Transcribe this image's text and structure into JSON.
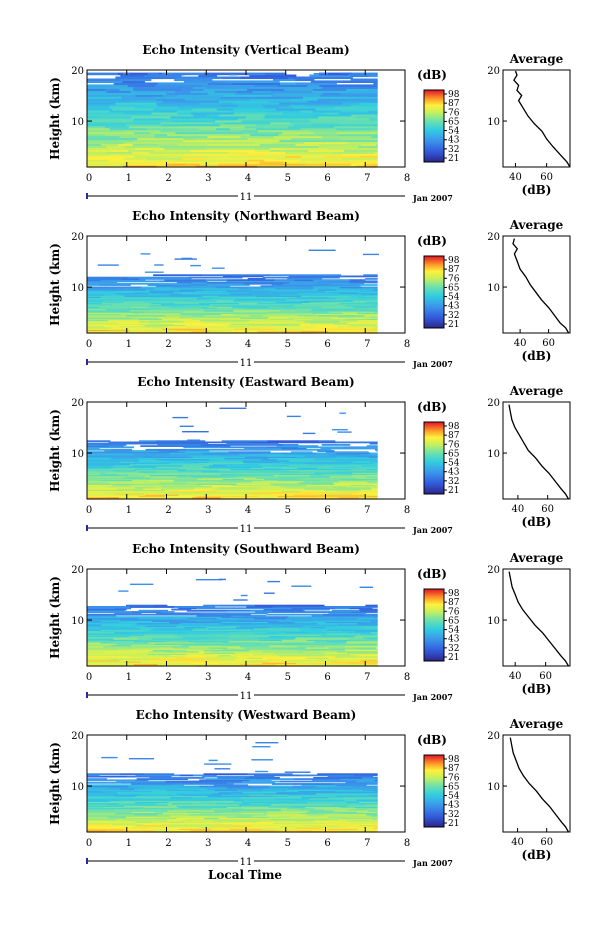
{
  "chart_data": [
    {
      "type": "heatmap",
      "title": "Echo Intensity (Vertical Beam)",
      "ylabel": "Height (km)",
      "xlim": [
        0,
        8
      ],
      "ylim": [
        1,
        20
      ],
      "x_ticks": [
        "0",
        "1",
        "2",
        "3",
        "4",
        "5",
        "6",
        "7",
        "8"
      ],
      "y_ticks": [
        "10",
        "20"
      ],
      "day_label": "11",
      "date_label": "Jan 2007",
      "data_end_hour": 7.3,
      "top_of_data_km": 19.5,
      "colorbar": {
        "unit": "(dB)",
        "ticks": [
          "21",
          "32",
          "43",
          "54",
          "65",
          "76",
          "87",
          "98"
        ]
      },
      "average_profile": {
        "title": "Average",
        "xlabel": "(dB)",
        "x_ticks": [
          "40",
          "60"
        ],
        "y_ticks": [
          "10",
          "20"
        ],
        "xlim": [
          32,
          75
        ],
        "points": [
          [
            75,
            1.0
          ],
          [
            73,
            2.0
          ],
          [
            70,
            3.0
          ],
          [
            67,
            4.0
          ],
          [
            64,
            5.0
          ],
          [
            60,
            6.5
          ],
          [
            57,
            8.0
          ],
          [
            52,
            9.5
          ],
          [
            48,
            11.0
          ],
          [
            45,
            12.5
          ],
          [
            42,
            14.0
          ],
          [
            44,
            15.0
          ],
          [
            41,
            16.0
          ],
          [
            42,
            17.0
          ],
          [
            39,
            18.0
          ],
          [
            41,
            19.0
          ],
          [
            40,
            19.8
          ]
        ]
      }
    },
    {
      "type": "heatmap",
      "title": "Echo Intensity (Northward Beam)",
      "ylabel": "Height (km)",
      "xlim": [
        0,
        8
      ],
      "ylim": [
        1,
        20
      ],
      "x_ticks": [
        "0",
        "1",
        "2",
        "3",
        "4",
        "5",
        "6",
        "7",
        "8"
      ],
      "y_ticks": [
        "10",
        "20"
      ],
      "day_label": "11",
      "date_label": "Jan 2007",
      "data_end_hour": 7.3,
      "top_of_data_km": 12.5,
      "colorbar": {
        "unit": "(dB)",
        "ticks": [
          "21",
          "32",
          "43",
          "54",
          "65",
          "76",
          "87",
          "98"
        ]
      },
      "average_profile": {
        "title": "Average",
        "xlabel": "(dB)",
        "x_ticks": [
          "40",
          "60"
        ],
        "y_ticks": [
          "10",
          "20"
        ],
        "xlim": [
          28,
          75
        ],
        "points": [
          [
            74,
            1.0
          ],
          [
            72,
            2.0
          ],
          [
            68,
            3.0
          ],
          [
            64,
            4.5
          ],
          [
            60,
            6.0
          ],
          [
            55,
            7.5
          ],
          [
            51,
            9.0
          ],
          [
            47,
            10.5
          ],
          [
            44,
            12.0
          ],
          [
            40,
            13.5
          ],
          [
            38,
            15.0
          ],
          [
            36,
            16.5
          ],
          [
            38,
            17.5
          ],
          [
            35,
            18.5
          ],
          [
            36,
            19.5
          ]
        ]
      }
    },
    {
      "type": "heatmap",
      "title": "Echo Intensity (Eastward Beam)",
      "ylabel": "Height (km)",
      "xlim": [
        0,
        8
      ],
      "ylim": [
        1,
        20
      ],
      "x_ticks": [
        "0",
        "1",
        "2",
        "3",
        "4",
        "5",
        "6",
        "7",
        "8"
      ],
      "y_ticks": [
        "10",
        "20"
      ],
      "day_label": "11",
      "date_label": "Jan 2007",
      "data_end_hour": 7.3,
      "top_of_data_km": 12.5,
      "colorbar": {
        "unit": "(dB)",
        "ticks": [
          "21",
          "32",
          "43",
          "54",
          "65",
          "76",
          "87",
          "98"
        ]
      },
      "average_profile": {
        "title": "Average",
        "xlabel": "(dB)",
        "x_ticks": [
          "40",
          "60"
        ],
        "y_ticks": [
          "10",
          "20"
        ],
        "xlim": [
          30,
          75
        ],
        "points": [
          [
            74,
            1.0
          ],
          [
            72,
            2.0
          ],
          [
            69,
            3.0
          ],
          [
            65,
            4.5
          ],
          [
            61,
            6.0
          ],
          [
            56,
            7.5
          ],
          [
            52,
            9.0
          ],
          [
            47,
            10.5
          ],
          [
            44,
            12.0
          ],
          [
            41,
            13.5
          ],
          [
            38,
            15.0
          ],
          [
            36,
            16.5
          ],
          [
            35,
            18.0
          ],
          [
            34,
            19.5
          ]
        ]
      }
    },
    {
      "type": "heatmap",
      "title": "Echo Intensity (Southward Beam)",
      "ylabel": "Height (km)",
      "xlim": [
        0,
        8
      ],
      "ylim": [
        1,
        20
      ],
      "x_ticks": [
        "0",
        "1",
        "2",
        "3",
        "4",
        "5",
        "6",
        "7",
        "8"
      ],
      "y_ticks": [
        "10",
        "20"
      ],
      "day_label": "11",
      "date_label": "Jan 2007",
      "data_end_hour": 7.3,
      "top_of_data_km": 13.0,
      "colorbar": {
        "unit": "(dB)",
        "ticks": [
          "21",
          "32",
          "43",
          "54",
          "65",
          "76",
          "87",
          "98"
        ]
      },
      "average_profile": {
        "title": "Average",
        "xlabel": "(dB)",
        "x_ticks": [
          "40",
          "60"
        ],
        "y_ticks": [
          "10",
          "20"
        ],
        "xlim": [
          32,
          76
        ],
        "points": [
          [
            75,
            1.0
          ],
          [
            73,
            2.0
          ],
          [
            70,
            3.0
          ],
          [
            66,
            4.5
          ],
          [
            62,
            6.0
          ],
          [
            58,
            7.5
          ],
          [
            53,
            9.0
          ],
          [
            49,
            10.5
          ],
          [
            45,
            12.0
          ],
          [
            42,
            13.5
          ],
          [
            40,
            15.0
          ],
          [
            38,
            16.5
          ],
          [
            37,
            18.0
          ],
          [
            36,
            19.5
          ]
        ]
      }
    },
    {
      "type": "heatmap",
      "title": "Echo Intensity (Westward Beam)",
      "ylabel": "Height (km)",
      "xlim": [
        0,
        8
      ],
      "ylim": [
        1,
        20
      ],
      "x_ticks": [
        "0",
        "1",
        "2",
        "3",
        "4",
        "5",
        "6",
        "7",
        "8"
      ],
      "y_ticks": [
        "10",
        "20"
      ],
      "day_label": "11",
      "date_label": "Jan 2007",
      "data_end_hour": 7.3,
      "top_of_data_km": 12.5,
      "colorbar": {
        "unit": "(dB)",
        "ticks": [
          "21",
          "32",
          "43",
          "54",
          "65",
          "76",
          "87",
          "98"
        ]
      },
      "average_profile": {
        "title": "Average",
        "xlabel": "(dB)",
        "x_ticks": [
          "40",
          "60"
        ],
        "y_ticks": [
          "10",
          "20"
        ],
        "xlim": [
          30,
          76
        ],
        "points": [
          [
            75,
            1.0
          ],
          [
            73,
            2.0
          ],
          [
            70,
            3.0
          ],
          [
            66,
            4.5
          ],
          [
            62,
            6.0
          ],
          [
            57,
            7.5
          ],
          [
            53,
            9.0
          ],
          [
            48,
            10.5
          ],
          [
            44,
            12.0
          ],
          [
            41,
            13.5
          ],
          [
            39,
            15.0
          ],
          [
            37,
            16.5
          ],
          [
            36,
            18.0
          ],
          [
            35,
            19.5
          ]
        ]
      }
    }
  ],
  "xlabel": "Local Time"
}
